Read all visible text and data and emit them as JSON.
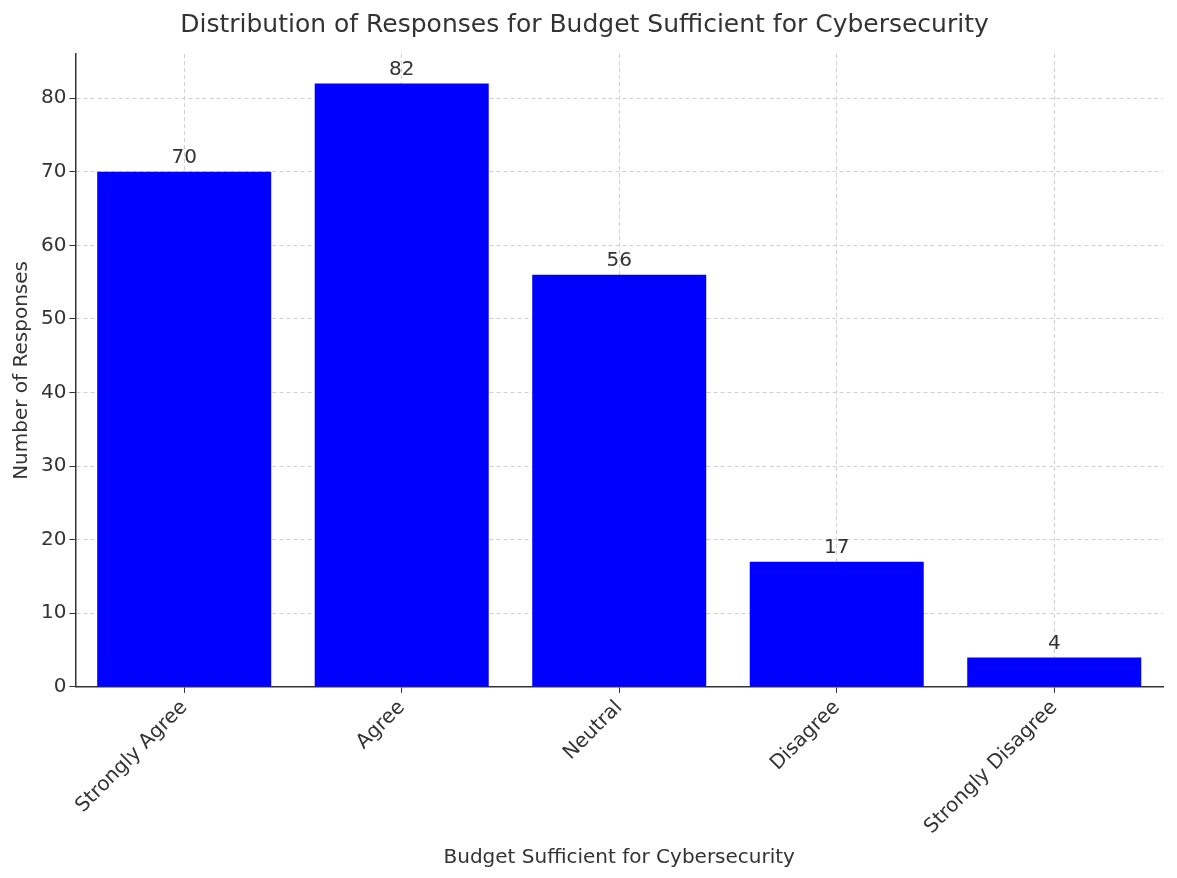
{
  "chart_data": {
    "type": "bar",
    "title": "Distribution of Responses for Budget Sufficient for Cybersecurity",
    "xlabel": "Budget Sufficient for Cybersecurity",
    "ylabel": "Number of Responses",
    "categories": [
      "Strongly Agree",
      "Agree",
      "Neutral",
      "Disagree",
      "Strongly Disagree"
    ],
    "values": [
      70,
      82,
      56,
      17,
      4
    ],
    "color": "#0000ff",
    "ylim": [
      0,
      86
    ],
    "yticks": [
      0,
      10,
      20,
      30,
      40,
      50,
      60,
      70,
      80
    ],
    "grid": true,
    "data_labels": true
  }
}
